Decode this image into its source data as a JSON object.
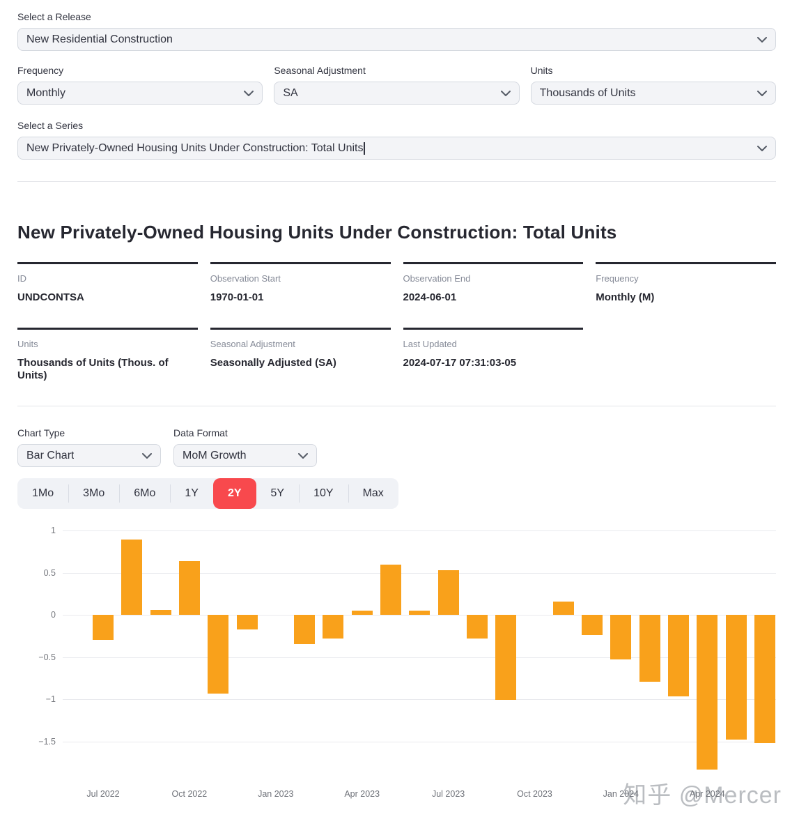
{
  "release": {
    "label": "Select a Release",
    "value": "New Residential Construction"
  },
  "filters": [
    {
      "label": "Frequency",
      "value": "Monthly"
    },
    {
      "label": "Seasonal Adjustment",
      "value": "SA"
    },
    {
      "label": "Units",
      "value": "Thousands of Units"
    }
  ],
  "series_select": {
    "label": "Select a Series",
    "value": "New Privately-Owned Housing Units Under Construction: Total Units"
  },
  "series": {
    "title": "New Privately-Owned Housing Units Under Construction: Total Units"
  },
  "metadata": [
    {
      "label": "ID",
      "value": "UNDCONTSA"
    },
    {
      "label": "Observation Start",
      "value": "1970-01-01"
    },
    {
      "label": "Observation End",
      "value": "2024-06-01"
    },
    {
      "label": "Frequency",
      "value": "Monthly (M)"
    },
    {
      "label": "Units",
      "value": "Thousands of Units (Thous. of Units)"
    },
    {
      "label": "Seasonal Adjustment",
      "value": "Seasonally Adjusted (SA)"
    },
    {
      "label": "Last Updated",
      "value": "2024-07-17 07:31:03-05"
    }
  ],
  "chart_controls": {
    "chart_type": {
      "label": "Chart Type",
      "value": "Bar Chart"
    },
    "data_format": {
      "label": "Data Format",
      "value": "MoM Growth"
    },
    "ranges": [
      "1Mo",
      "3Mo",
      "6Mo",
      "1Y",
      "2Y",
      "5Y",
      "10Y",
      "Max"
    ],
    "selected_range": "2Y"
  },
  "chart_data": {
    "type": "bar",
    "title": "",
    "xlabel": "",
    "ylabel": "",
    "x": [
      "2022-07",
      "2022-08",
      "2022-09",
      "2022-10",
      "2022-11",
      "2022-12",
      "2023-01",
      "2023-02",
      "2023-03",
      "2023-04",
      "2023-05",
      "2023-06",
      "2023-07",
      "2023-08",
      "2023-09",
      "2023-10",
      "2023-11",
      "2023-12",
      "2024-01",
      "2024-02",
      "2024-03",
      "2024-04",
      "2024-05",
      "2024-06"
    ],
    "values": [
      -0.3,
      0.89,
      0.06,
      0.64,
      -0.93,
      -0.17,
      0.0,
      -0.35,
      -0.28,
      0.05,
      0.6,
      0.05,
      0.53,
      -0.28,
      -1.01,
      0.0,
      0.16,
      -0.24,
      -0.53,
      -0.79,
      -0.97,
      -1.83,
      -1.48,
      -1.52
    ],
    "x_tick_labels": [
      "Jul 2022",
      "Oct 2022",
      "Jan 2023",
      "Apr 2023",
      "Jul 2023",
      "Oct 2023",
      "Jan 2024",
      "Apr 2024"
    ],
    "x_tick_indices": [
      0,
      3,
      6,
      9,
      12,
      15,
      18,
      21
    ],
    "y_ticks": [
      1,
      0.5,
      0,
      -0.5,
      -1,
      -1.5
    ],
    "ylim": [
      -1.9,
      1.1
    ],
    "grid": true,
    "legend": false,
    "bar_color": "#F9A11B"
  },
  "watermark": "知乎 @Mercer",
  "colors": {
    "accent_red": "#F8494D",
    "bar_orange": "#F9A11B",
    "select_bg": "#F3F4F7",
    "meta_border": "#262730",
    "gridline": "#E9EAEE"
  }
}
